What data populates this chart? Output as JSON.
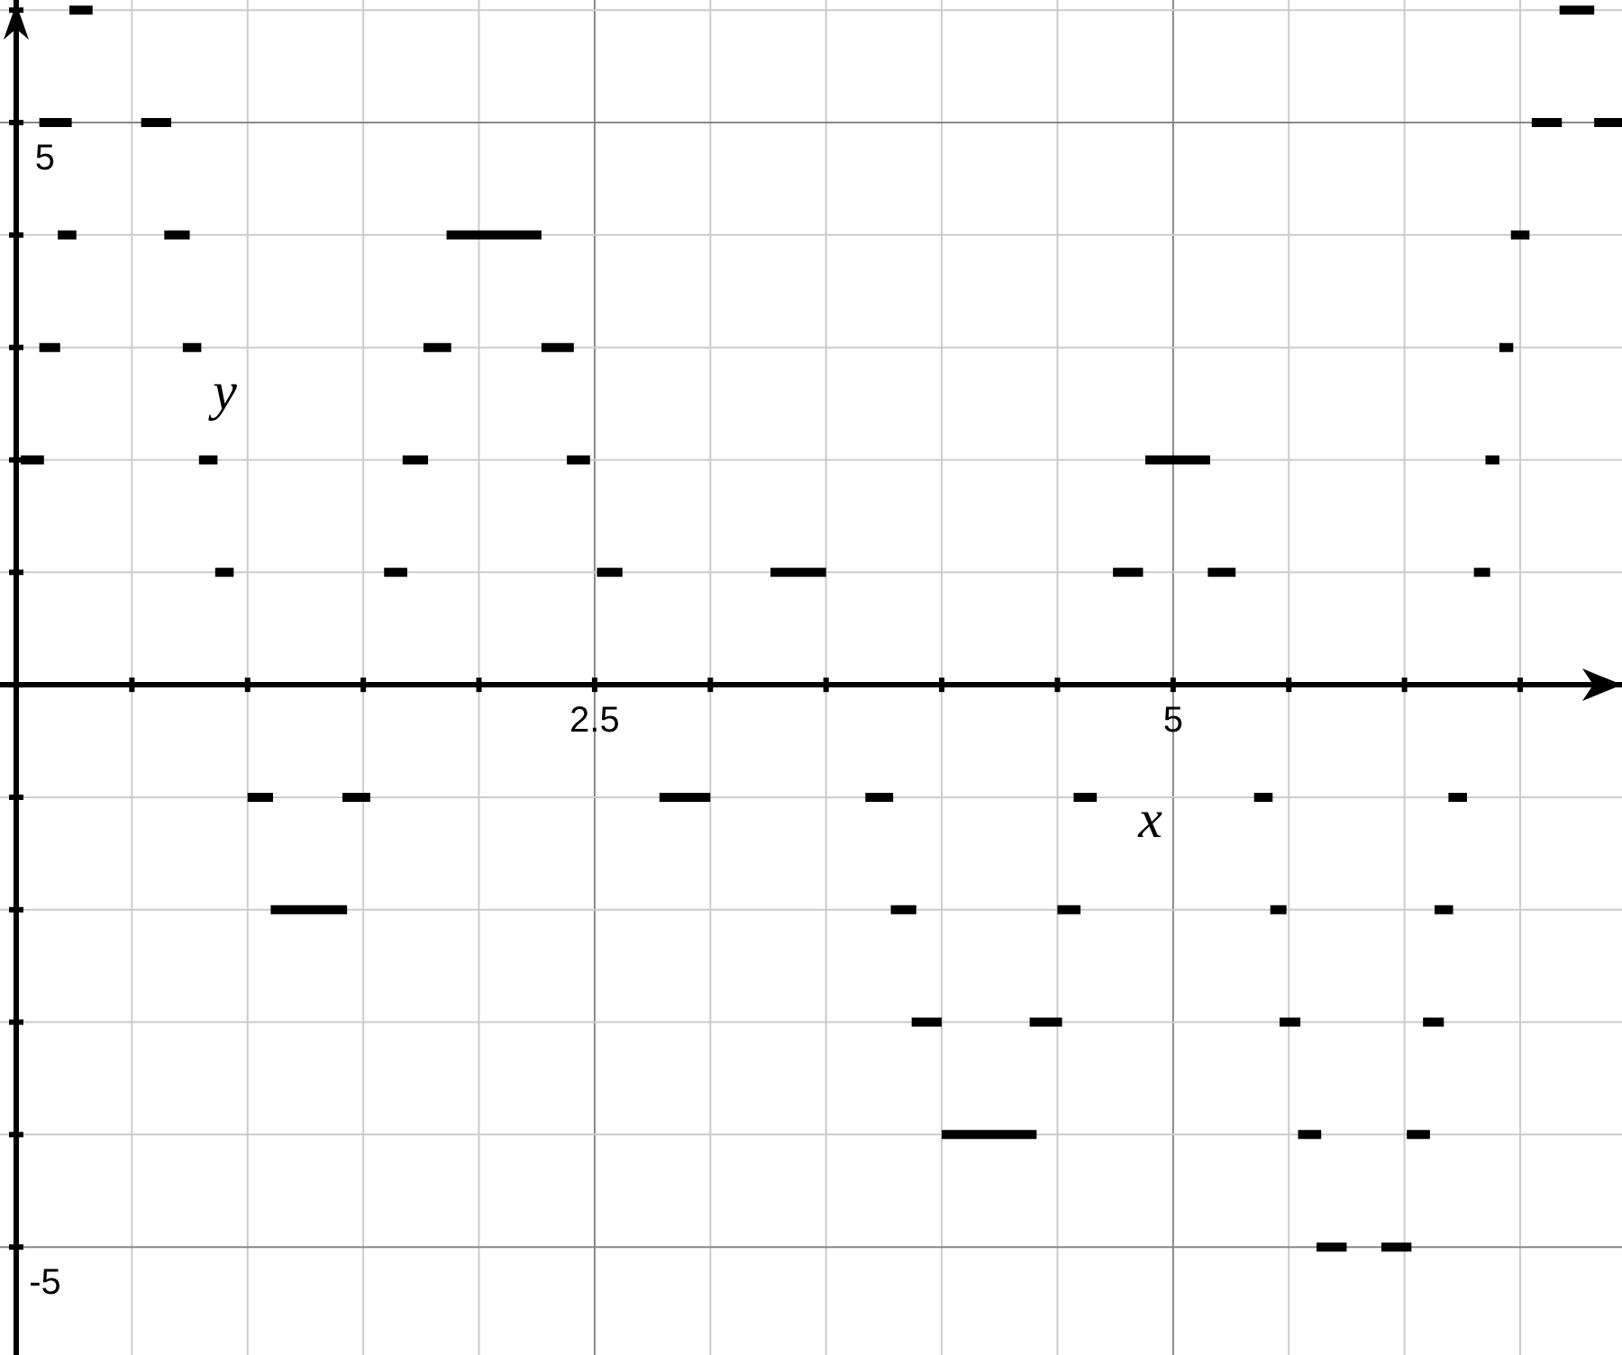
{
  "chart_data": {
    "type": "line",
    "xlabel": "x",
    "ylabel": "y",
    "xlim": [
      -0.07,
      6.94
    ],
    "ylim": [
      -5.96,
      6.09
    ],
    "xticks": [
      {
        "value": 0,
        "label": null
      },
      {
        "value": 0.5,
        "label": null
      },
      {
        "value": 1,
        "label": null
      },
      {
        "value": 1.5,
        "label": null
      },
      {
        "value": 2,
        "label": null
      },
      2.5,
      {
        "value": 3,
        "label": null
      },
      {
        "value": 3.5,
        "label": null
      },
      {
        "value": 4,
        "label": null
      },
      {
        "value": 4.5,
        "label": null
      },
      5,
      {
        "value": 5.5,
        "label": null
      },
      {
        "value": 6,
        "label": null
      },
      {
        "value": 6.5,
        "label": null
      }
    ],
    "yticks": [
      -5,
      {
        "value": -4,
        "label": null
      },
      {
        "value": -3,
        "label": null
      },
      {
        "value": -2,
        "label": null
      },
      {
        "value": -1,
        "label": null
      },
      {
        "value": 0,
        "label": null
      },
      {
        "value": 1,
        "label": null
      },
      {
        "value": 2,
        "label": null
      },
      {
        "value": 3,
        "label": null
      },
      {
        "value": 4,
        "label": null
      },
      5,
      {
        "value": 6,
        "label": null
      }
    ],
    "grid": true,
    "marker": "none",
    "line_style": "solid",
    "series": [
      {
        "color": "#000000",
        "x": [
          0.02,
          0.12,
          null,
          0.1,
          0.19,
          null,
          0.1,
          0.24,
          null,
          0.18,
          0.26,
          null,
          0.23,
          0.33,
          null,
          0.54,
          0.67,
          null,
          0.64,
          0.75,
          null,
          0.72,
          0.8,
          null,
          0.79,
          0.87,
          null,
          0.86,
          0.94,
          null,
          1.0,
          1.11,
          null,
          1.1,
          1.43,
          null,
          1.41,
          1.53,
          null,
          1.59,
          1.69,
          null,
          1.67,
          1.78,
          null,
          1.76,
          1.88,
          null,
          1.86,
          2.27,
          null,
          2.27,
          2.41,
          null,
          2.38,
          2.48,
          null,
          2.51,
          2.62,
          null,
          2.78,
          3.0,
          null,
          3.26,
          3.5,
          null,
          3.67,
          3.79,
          null,
          3.78,
          3.89,
          null,
          3.87,
          4.0,
          null,
          4.0,
          4.41,
          null,
          4.38,
          4.52,
          null,
          4.5,
          4.6,
          null,
          4.57,
          4.67,
          null,
          4.74,
          4.87,
          null,
          4.88,
          5.16,
          null,
          5.15,
          5.27,
          null,
          5.35,
          5.43,
          null,
          5.42,
          5.49,
          null,
          5.46,
          5.55,
          null,
          5.54,
          5.64,
          null,
          5.62,
          5.75,
          null,
          5.9,
          6.03,
          null,
          6.01,
          6.11,
          null,
          6.08,
          6.17,
          null,
          6.13,
          6.21,
          null,
          6.19,
          6.27,
          null,
          6.3,
          6.37,
          null,
          6.35,
          6.41,
          null,
          6.41,
          6.47,
          null,
          6.46,
          6.54,
          null,
          6.55,
          6.68,
          null,
          6.67,
          6.82,
          null,
          6.82,
          6.94
        ],
        "values": [
          2,
          2,
          null,
          3,
          3,
          null,
          5,
          5,
          null,
          4,
          4,
          null,
          6,
          6,
          null,
          5,
          5,
          null,
          4,
          4,
          null,
          3,
          3,
          null,
          2,
          2,
          null,
          1,
          1,
          null,
          -1,
          -1,
          null,
          -2,
          -2,
          null,
          -1,
          -1,
          null,
          1,
          1,
          null,
          2,
          2,
          null,
          3,
          3,
          null,
          4,
          4,
          null,
          3,
          3,
          null,
          2,
          2,
          null,
          1,
          1,
          null,
          -1,
          -1,
          null,
          1,
          1,
          null,
          -1,
          -1,
          null,
          -2,
          -2,
          null,
          -3,
          -3,
          null,
          -4,
          -4,
          null,
          -3,
          -3,
          null,
          -2,
          -2,
          null,
          -1,
          -1,
          null,
          1,
          1,
          null,
          2,
          2,
          null,
          1,
          1,
          null,
          -1,
          -1,
          null,
          -2,
          -2,
          null,
          -3,
          -3,
          null,
          -4,
          -4,
          null,
          -5,
          -5,
          null,
          -5,
          -5,
          null,
          -4,
          -4,
          null,
          -3,
          -3,
          null,
          -2,
          -2,
          null,
          -1,
          -1,
          null,
          1,
          1,
          null,
          2,
          2,
          null,
          3,
          3,
          null,
          4,
          4,
          null,
          5,
          5,
          null,
          6,
          6,
          null,
          5,
          5
        ]
      }
    ]
  }
}
